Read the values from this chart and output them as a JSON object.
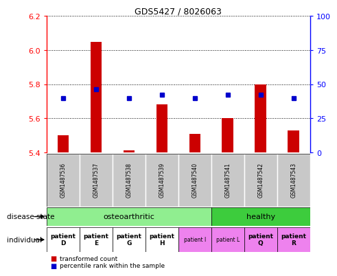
{
  "title": "GDS5427 / 8026063",
  "samples": [
    "GSM1487536",
    "GSM1487537",
    "GSM1487538",
    "GSM1487539",
    "GSM1487540",
    "GSM1487541",
    "GSM1487542",
    "GSM1487543"
  ],
  "red_values": [
    5.5,
    6.05,
    5.41,
    5.68,
    5.51,
    5.6,
    5.8,
    5.53
  ],
  "blue_values": [
    5.72,
    5.77,
    5.72,
    5.74,
    5.72,
    5.74,
    5.74,
    5.72
  ],
  "ylim": [
    5.4,
    6.2
  ],
  "y2lim": [
    0,
    100
  ],
  "yticks": [
    5.4,
    5.6,
    5.8,
    6.0,
    6.2
  ],
  "y2ticks": [
    0,
    25,
    50,
    75,
    100
  ],
  "disease_state": {
    "osteoarthritic": [
      0,
      1,
      2,
      3,
      4
    ],
    "healthy": [
      5,
      6,
      7
    ]
  },
  "disease_colors": {
    "osteoarthritic": "#90EE90",
    "healthy": "#3DCC3D"
  },
  "individual_labels": [
    "patient\nD",
    "patient\nE",
    "patient\nG",
    "patient\nH",
    "patient I",
    "patient L",
    "patient\nQ",
    "patient\nR"
  ],
  "individual_colors": [
    "#FFFFFF",
    "#FFFFFF",
    "#FFFFFF",
    "#FFFFFF",
    "#EE82EE",
    "#EE82EE",
    "#EE82EE",
    "#EE82EE"
  ],
  "individual_bold": [
    true,
    true,
    true,
    true,
    false,
    false,
    true,
    true
  ],
  "bar_bottom": 5.4,
  "bar_color": "#CC0000",
  "dot_color": "#0000CC",
  "sample_bg": "#C8C8C8"
}
